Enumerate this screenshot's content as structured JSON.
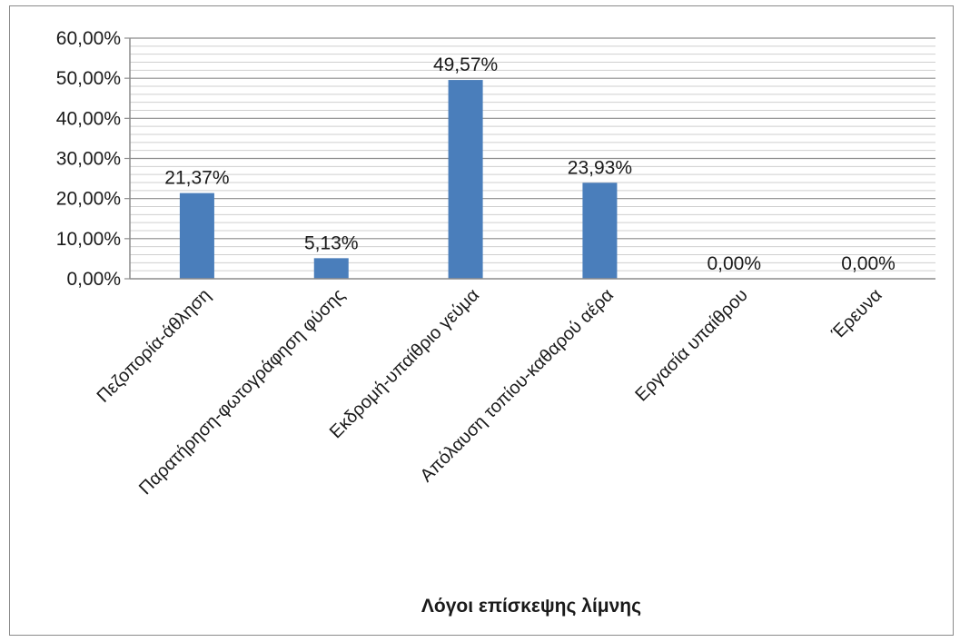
{
  "chart_data": {
    "type": "bar",
    "categories": [
      "Πεζοπορία-άθληση",
      "Παρατήρηση-φωτογράφηση φύσης",
      "Εκδρομή-υπαίθριο γεύμα",
      "Απόλαυση τοπίου-καθαρού  αέρα",
      "Εργασία υπαίθρου",
      "Έρευνα"
    ],
    "values": [
      21.37,
      5.13,
      49.57,
      23.93,
      0.0,
      0.0
    ],
    "value_labels": [
      "21,37%",
      "5,13%",
      "49,57%",
      "23,93%",
      "0,00%",
      "0,00%"
    ],
    "yticks": [
      "0,00%",
      "10,00%",
      "20,00%",
      "30,00%",
      "40,00%",
      "50,00%",
      "60,00%"
    ],
    "ylim": [
      0,
      60
    ],
    "xlabel": "Λόγοι επίσκεψης λίμνης",
    "ylabel": "",
    "grid": true,
    "legend": "none",
    "bar_color": "#4a7ebb"
  }
}
